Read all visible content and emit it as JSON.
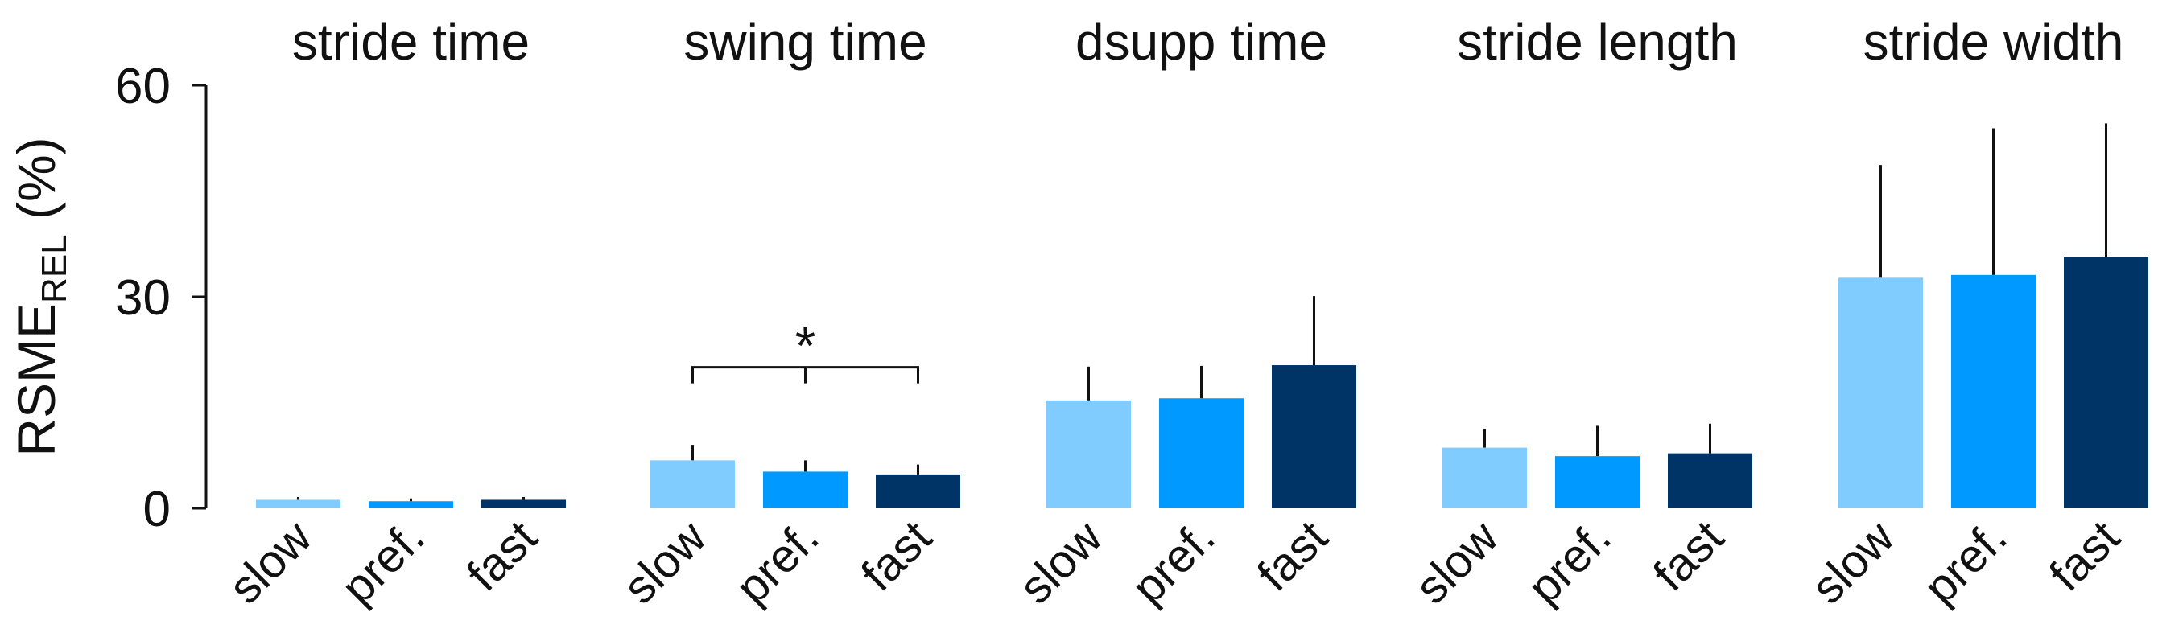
{
  "chart_data": {
    "type": "bar",
    "ylabel": "RSME",
    "ylabel_subscript": "REL",
    "ylabel_suffix": " (%)",
    "ylim": [
      0,
      60
    ],
    "yticks": [
      0,
      30,
      60
    ],
    "categories": [
      "slow",
      "pref.",
      "fast"
    ],
    "colors": [
      "#80cbff",
      "#0099ff",
      "#003366"
    ],
    "panels": [
      {
        "title": "stride time",
        "values": [
          1.2,
          1.0,
          1.2
        ],
        "errors": [
          0.4,
          0.4,
          0.4
        ]
      },
      {
        "title": "swing time",
        "values": [
          6.8,
          5.2,
          4.8
        ],
        "errors": [
          2.2,
          1.6,
          1.4
        ]
      },
      {
        "title": "dsupp time",
        "values": [
          15.3,
          15.6,
          20.3
        ],
        "errors": [
          4.8,
          4.6,
          9.8
        ]
      },
      {
        "title": "stride length",
        "values": [
          8.6,
          7.4,
          7.8
        ],
        "errors": [
          2.7,
          4.3,
          4.2
        ]
      },
      {
        "title": "stride width",
        "values": [
          32.7,
          33.1,
          35.7
        ],
        "errors": [
          16.0,
          20.8,
          18.9
        ]
      }
    ],
    "annotations": [
      {
        "panel": 1,
        "text": "*",
        "type": "significance-bracket",
        "from": 0,
        "to": 2,
        "mid": 1,
        "level": 20
      }
    ],
    "grid": false,
    "legend": "none"
  }
}
